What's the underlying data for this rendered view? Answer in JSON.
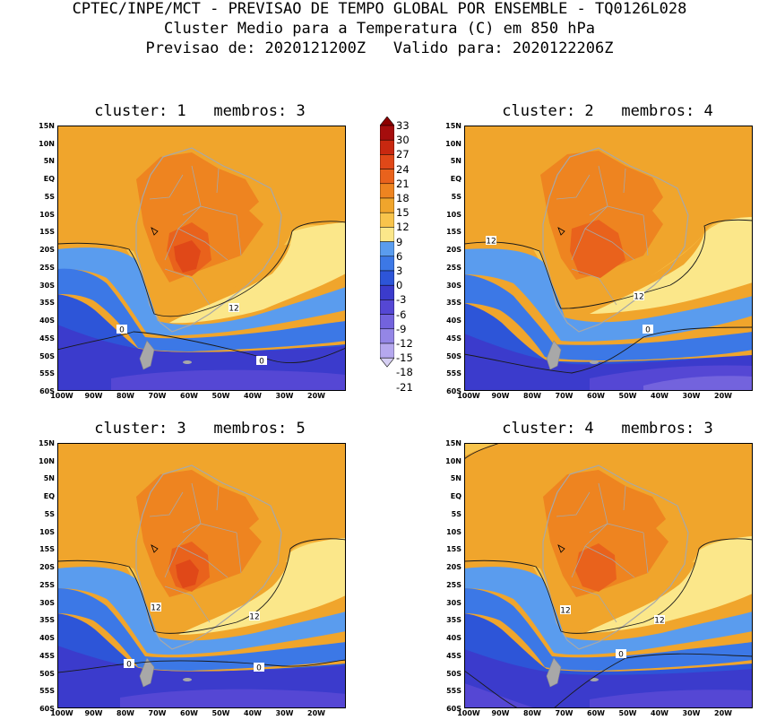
{
  "header": {
    "line1": "CPTEC/INPE/MCT - PREVISAO DE TEMPO GLOBAL POR ENSEMBLE - TQ0126L028",
    "line2": "Cluster Medio para a Temperatura (C) em 850 hPa",
    "line3": "Previsao de: 2020121200Z   Valido para: 2020122206Z"
  },
  "colors": {
    "scale": [
      "#d6cff3",
      "#b5a8ee",
      "#9486e6",
      "#7363dd",
      "#5547d4",
      "#3b3bcc",
      "#2d55d8",
      "#3c78e6",
      "#5a9cee",
      "#fbe78a",
      "#f8c44c",
      "#f0a52c",
      "#ee8420",
      "#e9621c",
      "#e04818",
      "#c82810",
      "#a50d0d",
      "#8c0000"
    ]
  },
  "colorbar": {
    "labels": [
      "33",
      "30",
      "27",
      "24",
      "21",
      "18",
      "15",
      "12",
      "9",
      "6",
      "3",
      "0",
      "-3",
      "-6",
      "-9",
      "-12",
      "-15",
      "-18",
      "-21"
    ]
  },
  "axes": {
    "lat_labels": [
      "15N",
      "10N",
      "5N",
      "EQ",
      "5S",
      "10S",
      "15S",
      "20S",
      "25S",
      "30S",
      "35S",
      "40S",
      "45S",
      "50S",
      "55S",
      "60S"
    ],
    "lon_labels": [
      "100W",
      "90W",
      "80W",
      "70W",
      "60W",
      "50W",
      "40W",
      "30W",
      "20W"
    ]
  },
  "panels": [
    {
      "title": "cluster: 1   membros: 3",
      "contour_labels": [
        "12",
        "0",
        "0"
      ]
    },
    {
      "title": "cluster: 2   membros: 4",
      "contour_labels": [
        "12",
        "12",
        "0"
      ]
    },
    {
      "title": "cluster: 3   membros: 5",
      "contour_labels": [
        "12",
        "12",
        "0",
        "0"
      ]
    },
    {
      "title": "cluster: 4   membros: 3",
      "contour_labels": [
        "12",
        "12",
        "0"
      ]
    }
  ]
}
